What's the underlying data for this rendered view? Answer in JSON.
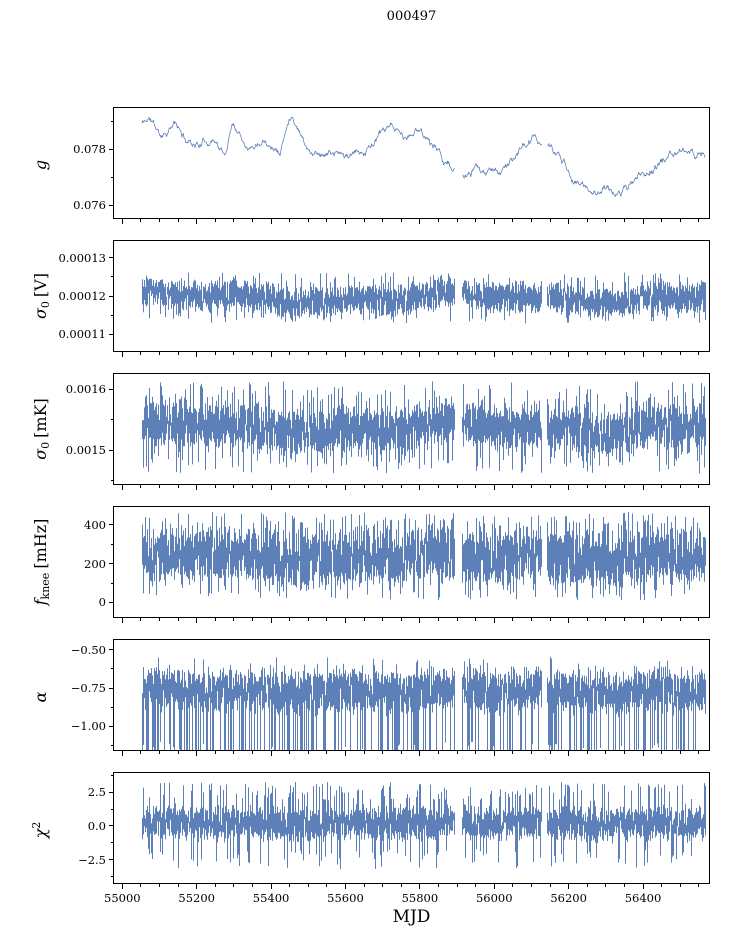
{
  "chart_data": {
    "type": "line",
    "title": "000497",
    "xlabel": "MJD",
    "line_color": "#4c72b0",
    "x_axis": {
      "lim": [
        54975,
        56580
      ],
      "major_ticks": [
        55000,
        55200,
        55400,
        55600,
        55800,
        56000,
        56200,
        56400
      ],
      "tick_labels": [
        "55000",
        "55200",
        "55400",
        "55600",
        "55800",
        "56000",
        "56200",
        "56400"
      ],
      "minor_step": 50
    },
    "data_range": [
      55052,
      56568
    ],
    "gaps": [
      [
        55895,
        55913
      ],
      [
        56128,
        56141
      ]
    ],
    "panels": [
      {
        "id": "g",
        "label_main": "g",
        "label_sub": "",
        "label_sup": "",
        "label_unit": "",
        "ylim": [
          0.0755,
          0.0795
        ],
        "yticks": [
          {
            "v": 0.076,
            "label": "0.076"
          },
          {
            "v": 0.078,
            "label": "0.078"
          }
        ],
        "series": {
          "kind": "smooth",
          "seed": 11,
          "noise": 0.00016,
          "jitter": 6e-05,
          "keypoints": [
            [
              55050,
              0.0789
            ],
            [
              55074,
              0.0791
            ],
            [
              55101,
              0.0785
            ],
            [
              55142,
              0.0789
            ],
            [
              55169,
              0.0783
            ],
            [
              55209,
              0.0782
            ],
            [
              55249,
              0.0784
            ],
            [
              55276,
              0.0777
            ],
            [
              55295,
              0.079
            ],
            [
              55343,
              0.0781
            ],
            [
              55384,
              0.0785
            ],
            [
              55424,
              0.0779
            ],
            [
              55454,
              0.0793
            ],
            [
              55478,
              0.0787
            ],
            [
              55505,
              0.0779
            ],
            [
              55558,
              0.0779
            ],
            [
              55612,
              0.0777
            ],
            [
              55652,
              0.0779
            ],
            [
              55693,
              0.0785
            ],
            [
              55733,
              0.0787
            ],
            [
              55760,
              0.0783
            ],
            [
              55800,
              0.0787
            ],
            [
              55841,
              0.0781
            ],
            [
              55881,
              0.0774
            ],
            [
              55921,
              0.0769
            ],
            [
              55948,
              0.0772
            ],
            [
              55988,
              0.0771
            ],
            [
              56029,
              0.0773
            ],
            [
              56069,
              0.0779
            ],
            [
              56109,
              0.0784
            ],
            [
              56136,
              0.0782
            ],
            [
              56176,
              0.0777
            ],
            [
              56217,
              0.0769
            ],
            [
              56257,
              0.0765
            ],
            [
              56297,
              0.0766
            ],
            [
              56338,
              0.0764
            ],
            [
              56378,
              0.0769
            ],
            [
              56418,
              0.0772
            ],
            [
              56459,
              0.0776
            ],
            [
              56499,
              0.0779
            ],
            [
              56539,
              0.0778
            ],
            [
              56566,
              0.0779
            ]
          ]
        }
      },
      {
        "id": "sigma0-v",
        "label_main": "σ",
        "label_sub": "0",
        "label_sup": "",
        "label_unit": "[V]",
        "ylim": [
          0.0001053,
          0.0001347
        ],
        "yticks": [
          {
            "v": 0.00011,
            "label": "0.00011"
          },
          {
            "v": 0.00012,
            "label": "0.00012"
          },
          {
            "v": 0.00013,
            "label": "0.00013"
          }
        ],
        "series": {
          "kind": "band",
          "seed": 7,
          "center": 0.0001195,
          "spread": 9.5e-06,
          "drift_amp": 1.5e-06,
          "spike_hi": 0.0001262,
          "spike_lo": 0.0001128,
          "spike_p_hi": 0.15,
          "spike_p_lo": 0.15
        }
      },
      {
        "id": "sigma0-mk",
        "label_main": "σ",
        "label_sub": "0",
        "label_sup": "",
        "label_unit": "[mK]",
        "ylim": [
          0.001443,
          0.001627
        ],
        "yticks": [
          {
            "v": 0.0015,
            "label": "0.0015"
          },
          {
            "v": 0.0016,
            "label": "0.0016"
          }
        ],
        "series": {
          "kind": "band",
          "seed": 13,
          "center": 0.001537,
          "spread": 8.8e-05,
          "drift_amp": 1.1e-05,
          "spike_hi": 0.001614,
          "spike_lo": 0.001462,
          "spike_p_hi": 0.22,
          "spike_p_lo": 0.22
        }
      },
      {
        "id": "fknee",
        "label_main": "f",
        "label_sub": "knee",
        "label_sup": "",
        "label_unit": "[mHz]",
        "ylim": [
          -80,
          498
        ],
        "yticks": [
          {
            "v": 0,
            "label": "0"
          },
          {
            "v": 200,
            "label": "200"
          },
          {
            "v": 400,
            "label": "400"
          }
        ],
        "series": {
          "kind": "band",
          "seed": 21,
          "center": 235,
          "spread": 330,
          "drift_amp": 18,
          "spike_hi": 468,
          "spike_lo": 12,
          "spike_p_hi": 0.3,
          "spike_p_lo": 0.25
        }
      },
      {
        "id": "alpha",
        "label_main": "α",
        "label_sub": "",
        "label_sup": "",
        "label_unit": "",
        "ylim": [
          -1.16,
          -0.43
        ],
        "yticks": [
          {
            "v": -1.0,
            "label": "−1.00"
          },
          {
            "v": -0.75,
            "label": "−0.75"
          },
          {
            "v": -0.5,
            "label": "−0.50"
          }
        ],
        "series": {
          "kind": "band",
          "seed": 29,
          "center": -0.77,
          "spread": 0.33,
          "drift_amp": 0.02,
          "spike_hi": -0.545,
          "spike_lo": -1.38,
          "spike_p_hi": 0.1,
          "spike_p_lo": 0.35
        }
      },
      {
        "id": "chi2",
        "label_main": "χ",
        "label_sub": "",
        "label_sup": "2",
        "label_unit": "",
        "ylim": [
          -4.3,
          4.0
        ],
        "yticks": [
          {
            "v": -2.5,
            "label": "−2.5"
          },
          {
            "v": 0,
            "label": "0.0"
          },
          {
            "v": 2.5,
            "label": "2.5"
          }
        ],
        "series": {
          "kind": "band",
          "seed": 37,
          "center": 0.2,
          "spread": 3.0,
          "drift_amp": 0.1,
          "spike_hi": 3.3,
          "spike_lo": -3.2,
          "spike_p_hi": 0.3,
          "spike_p_lo": 0.18
        }
      }
    ]
  }
}
